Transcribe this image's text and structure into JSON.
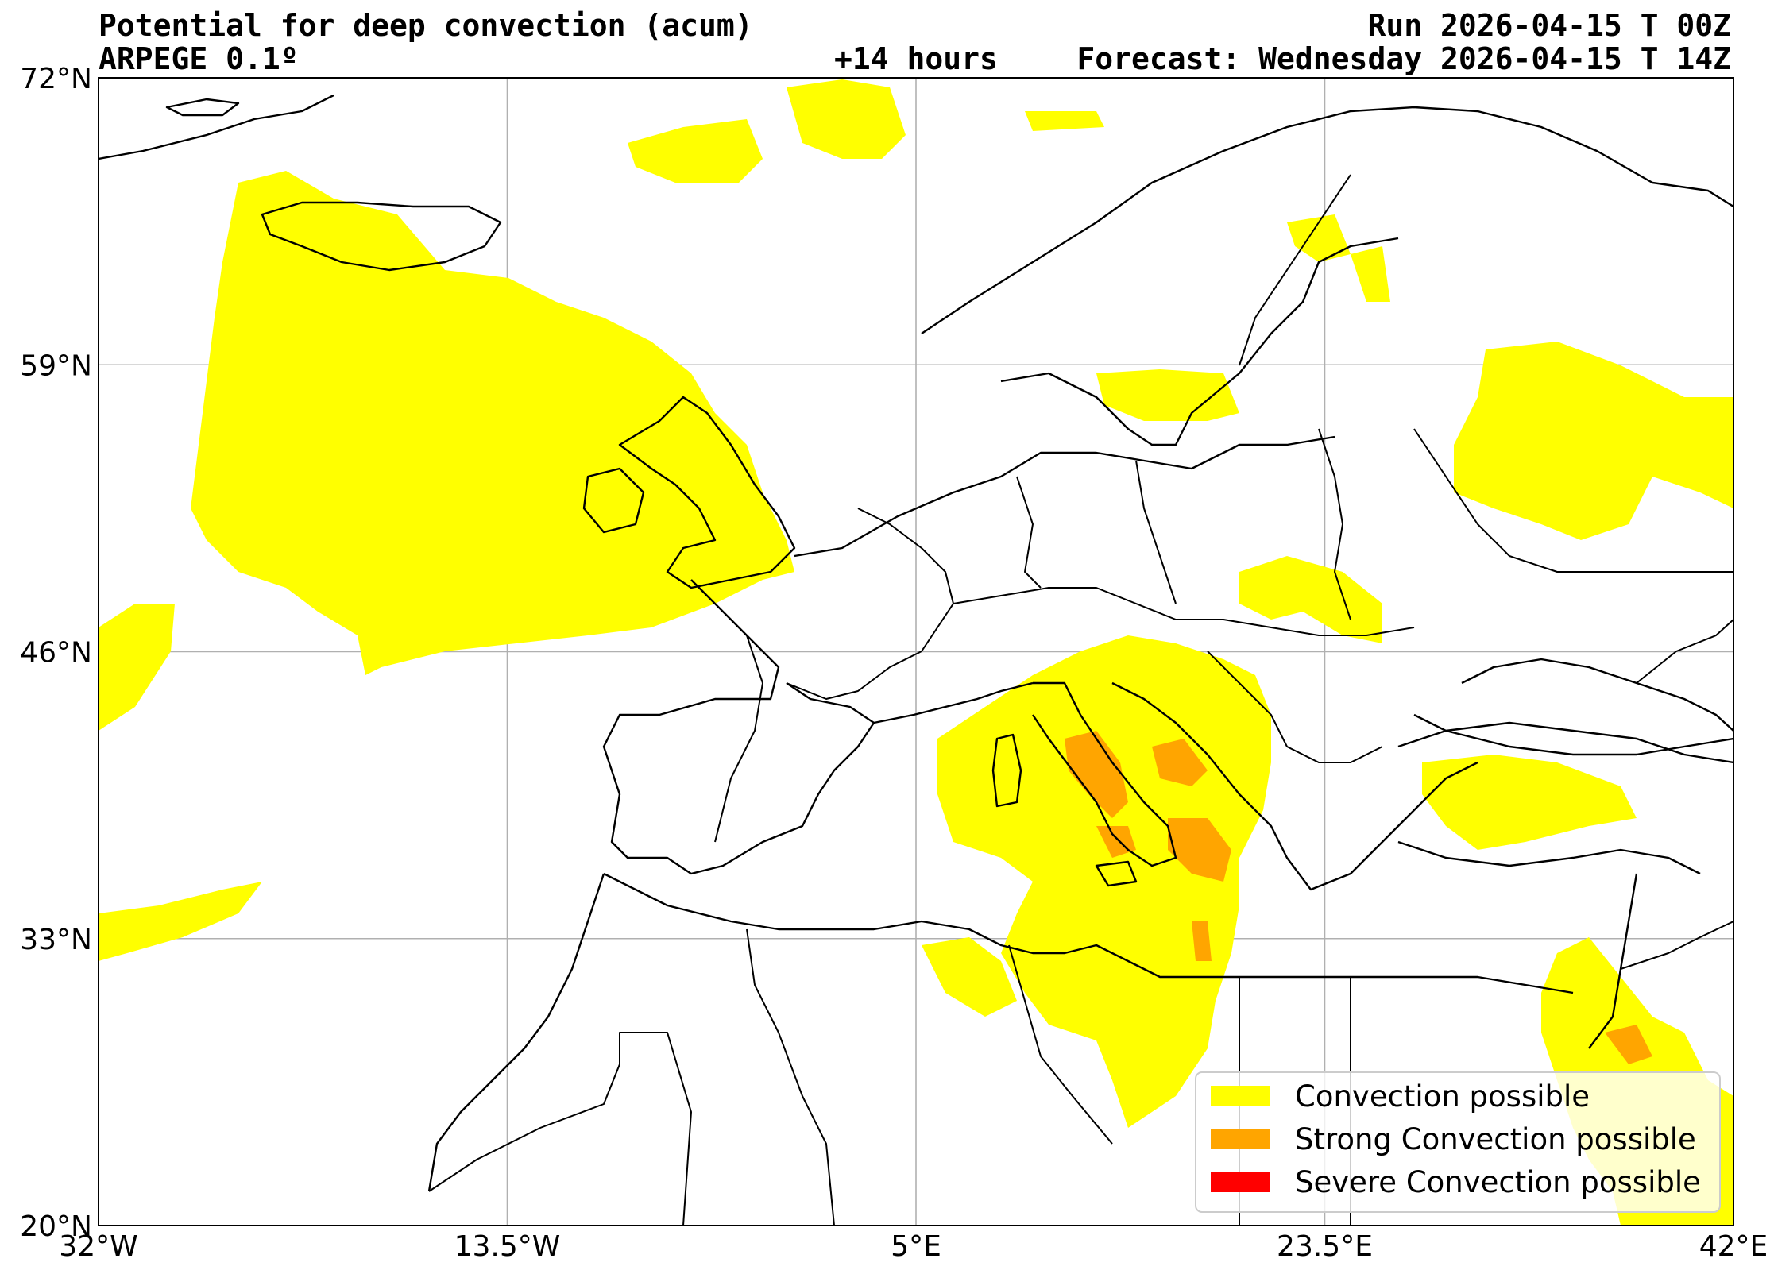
{
  "header": {
    "title": "Potential for deep convection (acum)",
    "model": "ARPEGE 0.1º",
    "run": "Run 2026-04-15 T 00Z",
    "lead": "+14 hours",
    "valid": "Forecast: Wednesday 2026-04-15 T 14Z"
  },
  "map": {
    "projection": "equirectangular",
    "lon_range": [
      -32,
      42
    ],
    "lat_range": [
      20,
      72
    ],
    "lon_ticks": [
      {
        "value": -32,
        "label": "32°W"
      },
      {
        "value": -13.5,
        "label": "13.5°W"
      },
      {
        "value": 5,
        "label": "5°E"
      },
      {
        "value": 23.5,
        "label": "23.5°E"
      },
      {
        "value": 42,
        "label": "42°E"
      }
    ],
    "lat_ticks": [
      {
        "value": 20,
        "label": "20°N"
      },
      {
        "value": 33,
        "label": "33°N"
      },
      {
        "value": 46,
        "label": "46°N"
      },
      {
        "value": 59,
        "label": "59°N"
      },
      {
        "value": 72,
        "label": "72°N"
      }
    ],
    "gridlines": true,
    "colors": {
      "convection": "#ffff00",
      "strong": "#ffa500",
      "severe": "#ff0000",
      "grid": "#b0b0b0",
      "coast": "#000000"
    }
  },
  "legend": {
    "placement": "bottom-right",
    "items": [
      {
        "label": "Convection possible",
        "color": "#ffff00"
      },
      {
        "label": "Strong Convection possible",
        "color": "#ffa500"
      },
      {
        "label": "Severe Convection possible",
        "color": "#ff0000"
      }
    ]
  }
}
